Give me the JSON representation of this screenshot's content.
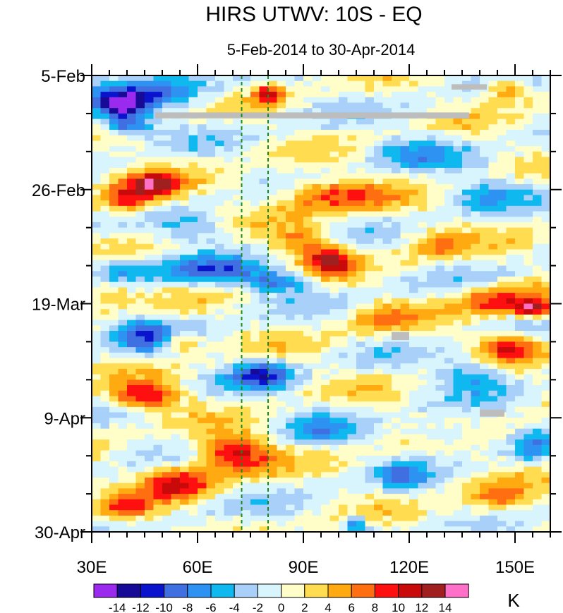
{
  "chart_data": {
    "type": "heatmap",
    "title": "HIRS UTWV: 10S - EQ",
    "subtitle": "5-Feb-2014 to 30-Apr-2014",
    "x_axis": {
      "range": [
        30,
        160
      ],
      "ticks": [
        {
          "value": 30,
          "label": "30E"
        },
        {
          "value": 60,
          "label": "60E"
        },
        {
          "value": 90,
          "label": "90E"
        },
        {
          "value": 120,
          "label": "120E"
        },
        {
          "value": 150,
          "label": "150E"
        }
      ],
      "minor_step": 5
    },
    "y_axis": {
      "range_days": [
        0,
        84
      ],
      "ticks": [
        {
          "day": 0,
          "label": "5-Feb"
        },
        {
          "day": 21,
          "label": "26-Feb"
        },
        {
          "day": 42,
          "label": "19-Mar"
        },
        {
          "day": 63,
          "label": "9-Apr"
        },
        {
          "day": 84,
          "label": "30-Apr"
        }
      ],
      "minor_step": 7
    },
    "reference_lines": [
      {
        "lon": 72.5,
        "color": "#1a8a1a",
        "style": "dashed"
      },
      {
        "lon": 80,
        "color": "#1a8a1a",
        "style": "dashed"
      }
    ],
    "colorbar": {
      "units": "K",
      "levels": [
        -14,
        -12,
        -10,
        -8,
        -6,
        -4,
        -2,
        0,
        2,
        4,
        6,
        8,
        10,
        12,
        14
      ],
      "labels": [
        "-14",
        "-12",
        "-10",
        "-8",
        "-6",
        "-4",
        "-2",
        "0",
        "2",
        "4",
        "6",
        "8",
        "10",
        "12",
        "14"
      ],
      "colors": [
        "#9a2bee",
        "#160a96",
        "#0a14cc",
        "#3f6fe0",
        "#2d92f2",
        "#10b8f0",
        "#a8d0f8",
        "#d8f4fc",
        "#fffdc8",
        "#ffdc50",
        "#ffaa10",
        "#ff6e10",
        "#ff1010",
        "#c80a0a",
        "#a02020",
        "#ff70c8"
      ]
    },
    "missing_color": "#bdbdbd",
    "missing_regions": [
      {
        "lon": [
          48,
          137
        ],
        "days": [
          6.8,
          7.9
        ]
      },
      {
        "lon": [
          132,
          142
        ],
        "days": [
          1.6,
          2.6
        ]
      },
      {
        "lon": [
          115,
          120
        ],
        "days": [
          47.2,
          48.7
        ]
      },
      {
        "lon": [
          140,
          147
        ],
        "days": [
          61.5,
          62.8
        ]
      }
    ],
    "anomaly_features": [
      {
        "lon": 38,
        "day": 5.5,
        "value": -11,
        "r_lon": 8,
        "r_day": 2.5
      },
      {
        "lon": 40,
        "day": 9,
        "value": -10,
        "r_lon": 7,
        "r_day": 2
      },
      {
        "lon": 50,
        "day": 3,
        "value": -7,
        "r_lon": 16,
        "r_day": 3
      },
      {
        "lon": 80,
        "day": 3.5,
        "value": 9,
        "r_lon": 4,
        "r_day": 2
      },
      {
        "lon": 148,
        "day": 2.5,
        "value": 8,
        "r_lon": 6,
        "r_day": 2
      },
      {
        "lon": 40,
        "day": 23,
        "value": 9,
        "r_lon": 8,
        "r_day": 3
      },
      {
        "lon": 48,
        "day": 20,
        "value": 10,
        "r_lon": 8,
        "r_day": 2.5
      },
      {
        "lon": 98,
        "day": 22,
        "value": 9,
        "r_lon": 16,
        "r_day": 3
      },
      {
        "lon": 90,
        "day": 31,
        "value": 7,
        "r_lon": 9,
        "r_day": 3
      },
      {
        "lon": 98,
        "day": 34.5,
        "value": 10,
        "r_lon": 6,
        "r_day": 2.5
      },
      {
        "lon": 62,
        "day": 36,
        "value": -8,
        "r_lon": 14,
        "r_day": 2.5
      },
      {
        "lon": 82,
        "day": 38,
        "value": -8,
        "r_lon": 10,
        "r_day": 2
      },
      {
        "lon": 38,
        "day": 36,
        "value": -6,
        "r_lon": 8,
        "r_day": 2.5
      },
      {
        "lon": 35,
        "day": 40,
        "value": 6,
        "r_lon": 7,
        "r_day": 2.5
      },
      {
        "lon": 146,
        "day": 41.5,
        "value": 9,
        "r_lon": 12,
        "r_day": 2.5
      },
      {
        "lon": 155,
        "day": 43,
        "value": 11,
        "r_lon": 5,
        "r_day": 1.5
      },
      {
        "lon": 148,
        "day": 50,
        "value": 9,
        "r_lon": 8,
        "r_day": 2.5
      },
      {
        "lon": 55,
        "day": 49,
        "value": 8,
        "r_lon": 5,
        "r_day": 2
      },
      {
        "lon": 45,
        "day": 48,
        "value": -8,
        "r_lon": 10,
        "r_day": 3
      },
      {
        "lon": 78,
        "day": 55,
        "value": -10,
        "r_lon": 8,
        "r_day": 2.5
      },
      {
        "lon": 45,
        "day": 59,
        "value": 11,
        "r_lon": 10,
        "r_day": 2.5
      },
      {
        "lon": 70,
        "day": 69.5,
        "value": 11,
        "r_lon": 11,
        "r_day": 3.5
      },
      {
        "lon": 55,
        "day": 75,
        "value": 9,
        "r_lon": 10,
        "r_day": 3
      },
      {
        "lon": 40,
        "day": 80,
        "value": 8,
        "r_lon": 8,
        "r_day": 2.5
      },
      {
        "lon": 105,
        "day": 82.5,
        "value": -9,
        "r_lon": 3,
        "r_day": 1.5
      },
      {
        "lon": 118,
        "day": 74,
        "value": -6,
        "r_lon": 6,
        "r_day": 2.5
      },
      {
        "lon": 138,
        "day": 55,
        "value": -6,
        "r_lon": 10,
        "r_day": 3
      },
      {
        "lon": 145,
        "day": 78,
        "value": 6,
        "r_lon": 9,
        "r_day": 3
      },
      {
        "lon": 120,
        "day": 14,
        "value": -5,
        "r_lon": 14,
        "r_day": 3
      },
      {
        "lon": 140,
        "day": 22,
        "value": -5,
        "r_lon": 12,
        "r_day": 3
      },
      {
        "lon": 128,
        "day": 31,
        "value": 5,
        "r_lon": 10,
        "r_day": 3
      },
      {
        "lon": 112,
        "day": 45,
        "value": 5,
        "r_lon": 10,
        "r_day": 3
      },
      {
        "lon": 95,
        "day": 65,
        "value": -4,
        "r_lon": 10,
        "r_day": 3
      },
      {
        "lon": 130,
        "day": 66,
        "value": -5,
        "r_lon": 9,
        "r_day": 2.5
      },
      {
        "lon": 155,
        "day": 68,
        "value": -5,
        "r_lon": 5,
        "r_day": 3
      },
      {
        "lon": 60,
        "day": 28,
        "value": -5,
        "r_lon": 9,
        "r_day": 2.5
      }
    ]
  }
}
